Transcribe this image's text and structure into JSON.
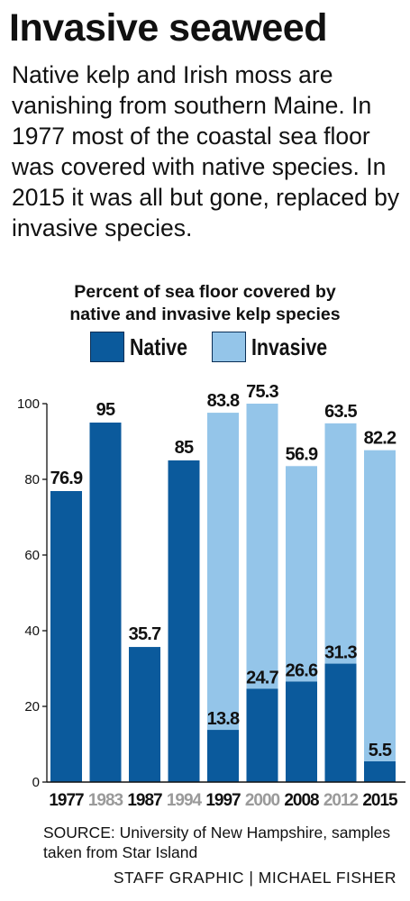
{
  "headline": "Invasive seaweed",
  "intro": "Native kelp and Irish moss are vanishing from southern Maine. In 1977 most of the coastal sea floor was covered with native species. In 2015 it was all but gone, replaced by invasive species.",
  "source": "SOURCE: University of New Hampshire, samples taken from Star Island",
  "credit": "STAFF GRAPHIC | MICHAEL FISHER",
  "colors": {
    "native": "#0b5a9c",
    "invasive": "#94c5e9",
    "outline": "#0a2f56",
    "axis": "#111111",
    "muted_year": "#9a9a9a"
  },
  "chart_data": {
    "type": "bar",
    "stacked": true,
    "title": "Percent of sea floor covered by native and invasive kelp species",
    "title_lines": [
      "Percent of sea floor covered by",
      "native and invasive kelp species"
    ],
    "legend": [
      {
        "name": "Native",
        "color": "#0b5a9c"
      },
      {
        "name": "Invasive",
        "color": "#94c5e9"
      }
    ],
    "legend_placement": "top",
    "categories": [
      "1977",
      "1983",
      "1987",
      "1994",
      "1997",
      "2000",
      "2008",
      "2012",
      "2015"
    ],
    "muted_categories": [
      "1983",
      "1994",
      "2000",
      "2012"
    ],
    "series": [
      {
        "name": "Native",
        "values": [
          76.9,
          95,
          35.7,
          85,
          13.8,
          24.7,
          26.6,
          31.3,
          5.5
        ]
      },
      {
        "name": "Invasive",
        "values": [
          null,
          null,
          null,
          null,
          83.8,
          75.3,
          56.9,
          63.5,
          82.2
        ]
      }
    ],
    "ylim": [
      0,
      100
    ],
    "yticks": [
      0,
      20,
      40,
      60,
      80,
      100
    ],
    "grid": false,
    "xlabel": "",
    "ylabel": ""
  }
}
